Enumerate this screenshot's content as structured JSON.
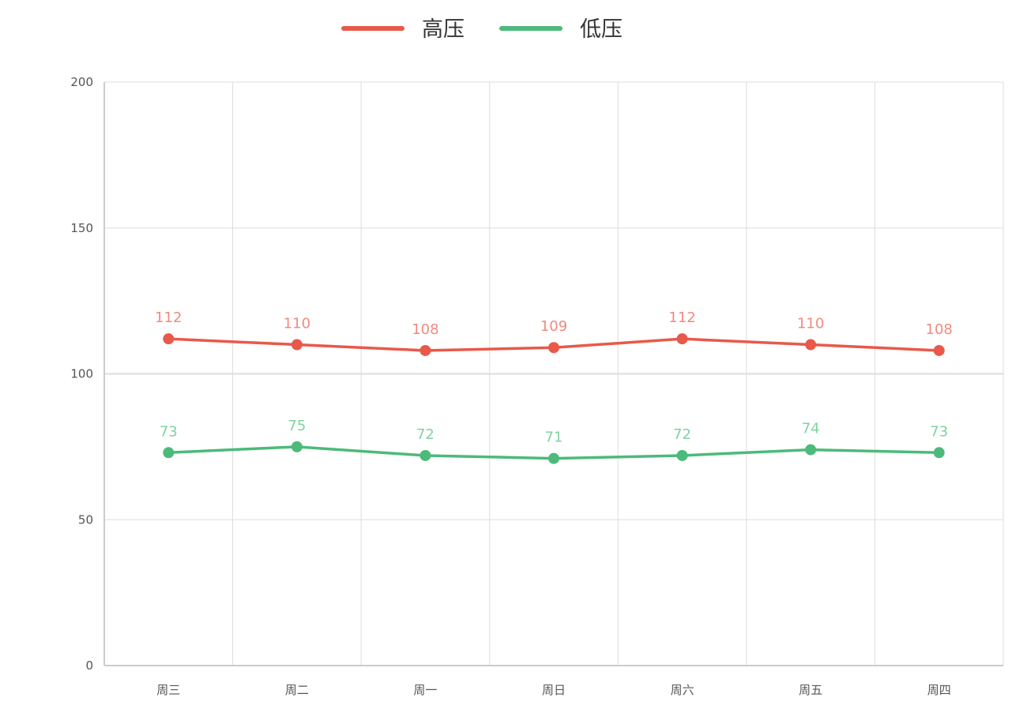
{
  "chart_data": {
    "type": "line",
    "categories": [
      "周三",
      "周二",
      "周一",
      "周日",
      "周六",
      "周五",
      "周四"
    ],
    "series": [
      {
        "name": "高压",
        "color": "#e8594a",
        "label_color": "#f08a7e",
        "values": [
          112,
          110,
          108,
          109,
          112,
          110,
          108
        ]
      },
      {
        "name": "低压",
        "color": "#4cba7a",
        "label_color": "#7fd3a0",
        "values": [
          73,
          75,
          72,
          71,
          72,
          74,
          73
        ]
      }
    ],
    "ylim": [
      0,
      200
    ],
    "yticks": [
      0,
      50,
      100,
      150,
      200
    ],
    "grid": true,
    "legend_position": "top-center",
    "data_labels": true
  }
}
